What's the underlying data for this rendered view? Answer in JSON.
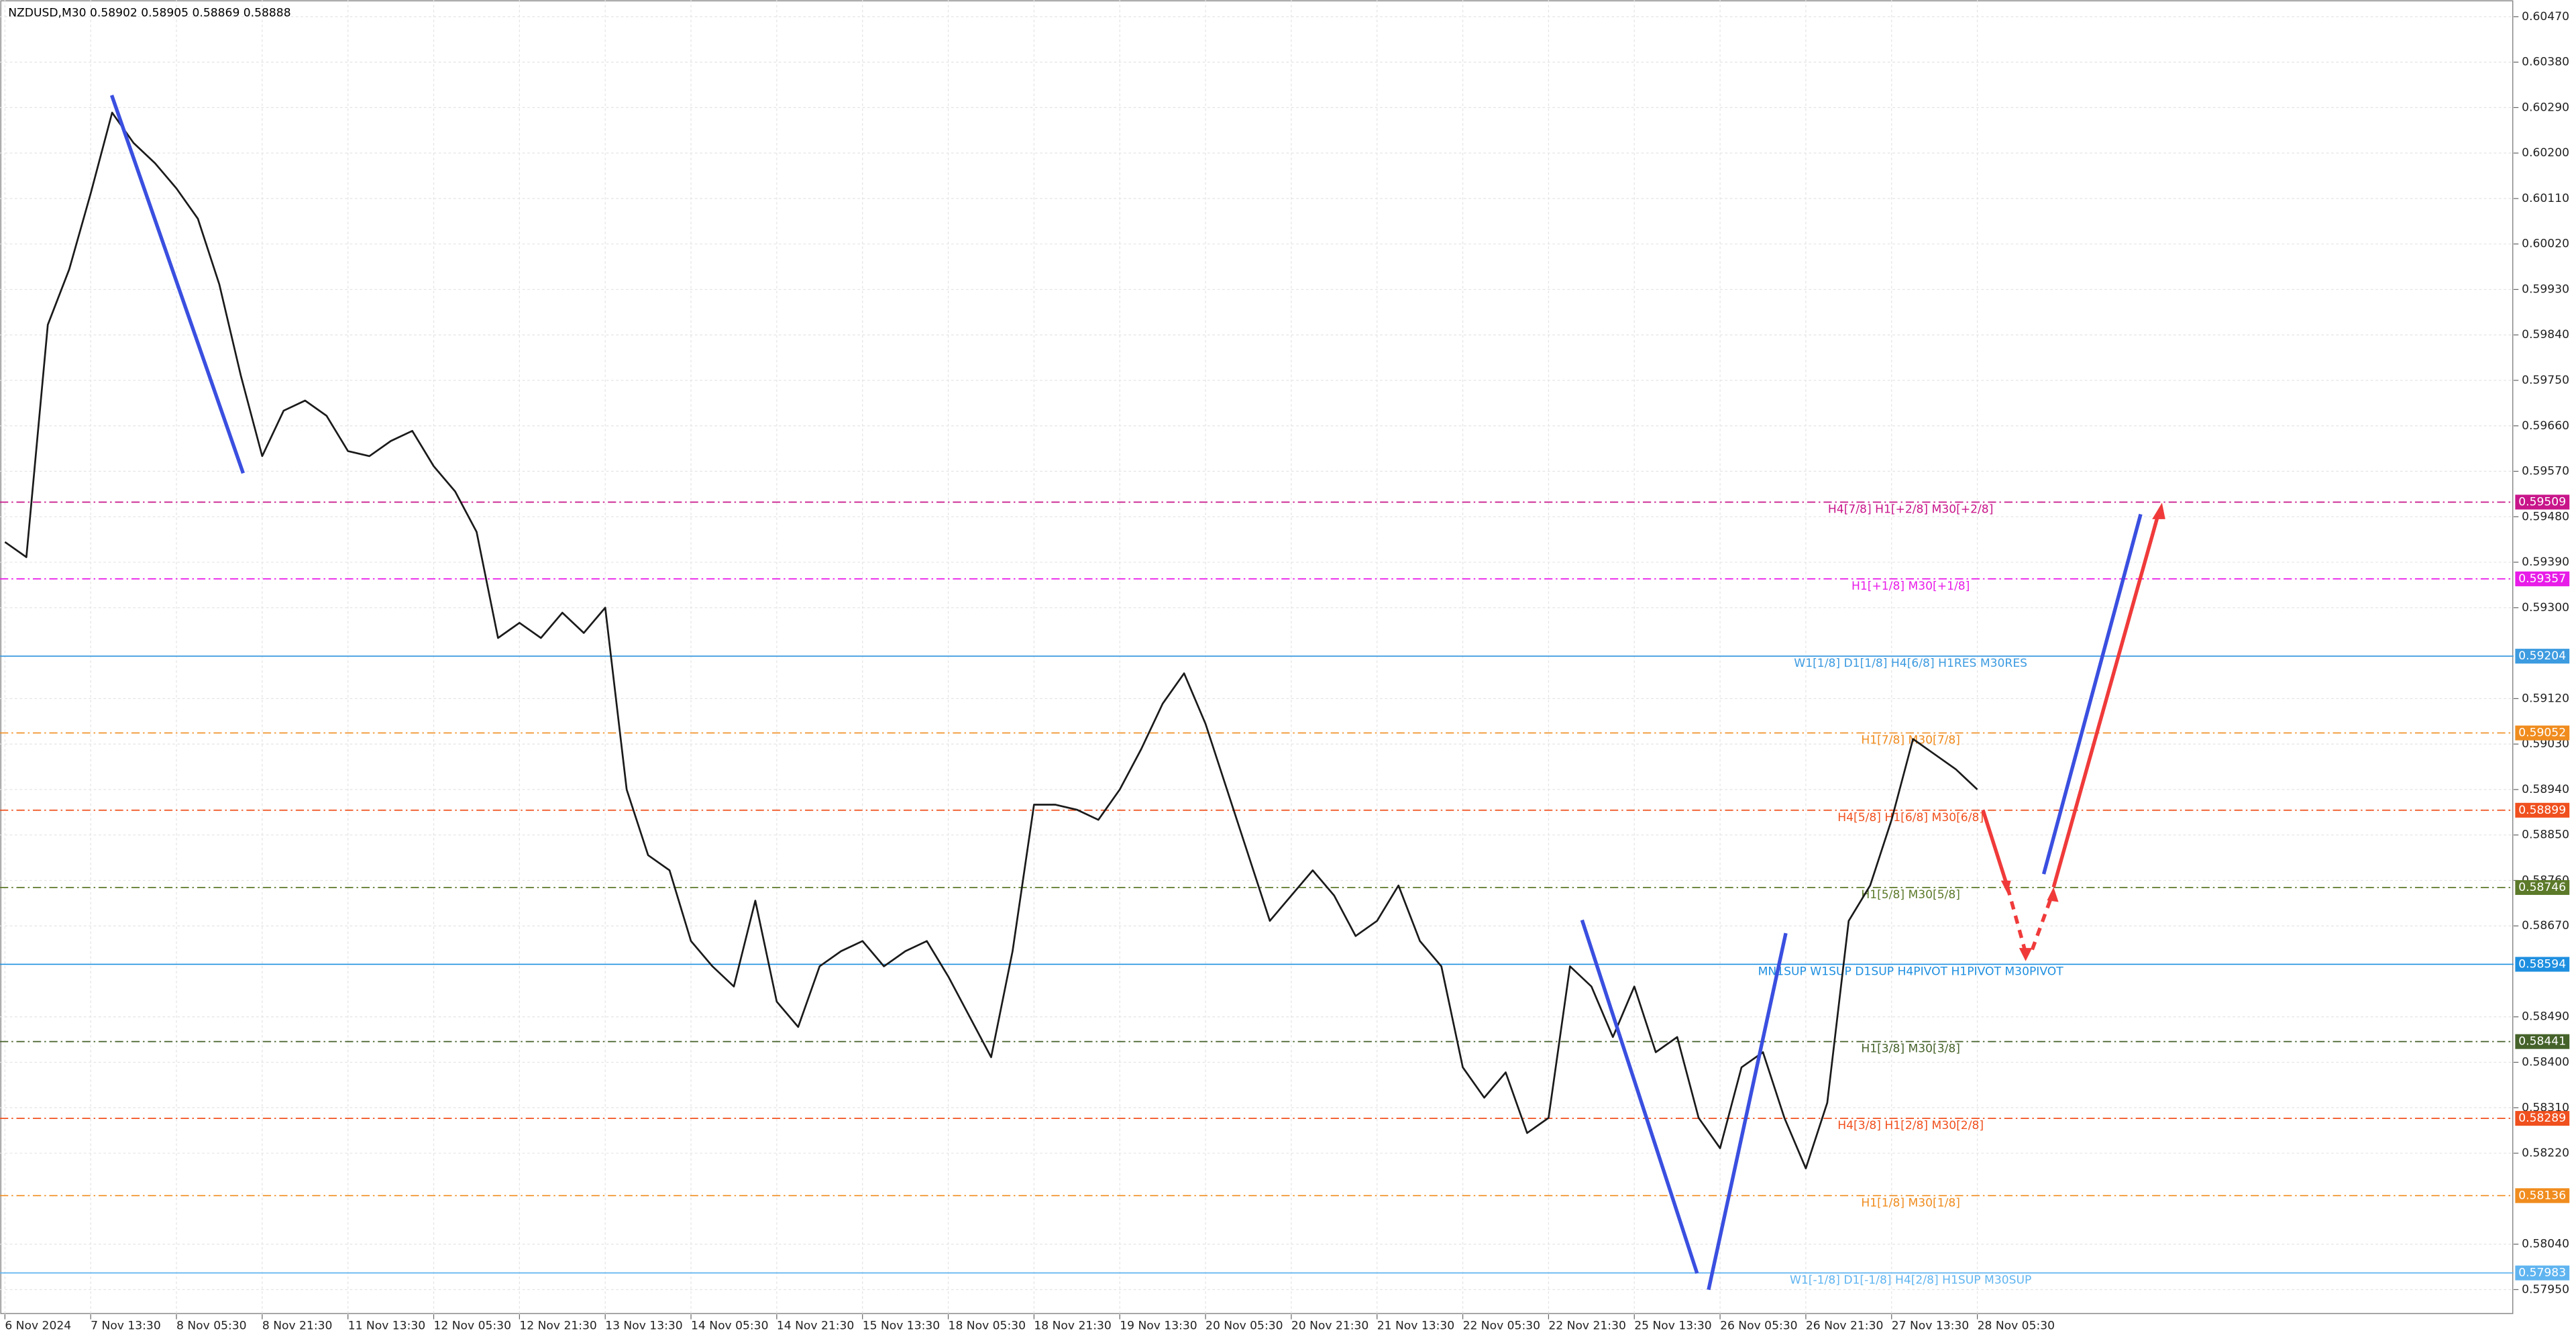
{
  "chart_data": {
    "type": "line",
    "title": "NZDUSD,M30  0.58902 0.58905 0.58869 0.58888",
    "color": "#1a1a1a",
    "grid": true,
    "categories": [
      "6 Nov 2024",
      null,
      null,
      null,
      "7 Nov 13:30",
      null,
      null,
      null,
      "8 Nov 05:30",
      null,
      null,
      null,
      "8 Nov 21:30",
      null,
      null,
      null,
      "11 Nov 13:30",
      null,
      null,
      null,
      "12 Nov 05:30",
      null,
      null,
      null,
      "12 Nov 21:30",
      null,
      null,
      null,
      "13 Nov 13:30",
      null,
      null,
      null,
      "14 Nov 05:30",
      null,
      null,
      null,
      "14 Nov 21:30",
      null,
      null,
      null,
      "15 Nov 13:30",
      null,
      null,
      null,
      "18 Nov 05:30",
      null,
      null,
      null,
      "18 Nov 21:30",
      null,
      null,
      null,
      "19 Nov 13:30",
      null,
      null,
      null,
      "20 Nov 05:30",
      null,
      null,
      null,
      "20 Nov 21:30",
      null,
      null,
      null,
      "21 Nov 13:30",
      null,
      null,
      null,
      "22 Nov 05:30",
      null,
      null,
      null,
      "22 Nov 21:30",
      null,
      null,
      null,
      "25 Nov 13:30",
      null,
      null,
      null,
      "26 Nov 05:30",
      null,
      null,
      null,
      "26 Nov 21:30",
      null,
      null,
      null,
      "27 Nov 13:30",
      null,
      null,
      null,
      "28 Nov 05:30"
    ],
    "values": [
      0.5943,
      0.594,
      0.5986,
      0.5997,
      0.6012,
      0.6028,
      0.6022,
      0.6018,
      0.6013,
      0.6007,
      0.5994,
      0.5976,
      0.596,
      0.5969,
      0.5971,
      0.5968,
      0.5961,
      0.596,
      0.5963,
      0.5965,
      0.5958,
      0.5953,
      0.5945,
      0.5924,
      0.5927,
      0.5924,
      0.5929,
      0.5925,
      0.593,
      0.5894,
      0.5881,
      0.5878,
      0.5864,
      0.5859,
      0.5855,
      0.5872,
      0.5852,
      0.5847,
      0.5859,
      0.5862,
      0.5864,
      0.5859,
      0.5862,
      0.5864,
      0.5857,
      0.5849,
      0.5841,
      0.5862,
      0.5891,
      0.5891,
      0.589,
      0.5888,
      0.5894,
      0.5902,
      0.5911,
      0.5917,
      0.5907,
      0.5894,
      0.5881,
      0.5868,
      0.5873,
      0.5878,
      0.5873,
      0.5865,
      0.5868,
      0.5875,
      0.5864,
      0.5859,
      0.5839,
      0.5833,
      0.5838,
      0.5826,
      0.5829,
      0.5859,
      0.5855,
      0.5845,
      0.5855,
      0.5842,
      0.5845,
      0.5829,
      0.5823,
      0.5839,
      0.5842,
      0.5829,
      0.5819,
      0.5832,
      0.5868,
      0.5875,
      0.5888,
      0.5904,
      0.5901,
      0.5898,
      0.5894
    ],
    "ylim": [
      0.57901,
      0.60503
    ],
    "yticks": [
      {
        "value": 0.6047,
        "label": "0.60470"
      },
      {
        "value": 0.6038,
        "label": "0.60380"
      },
      {
        "value": 0.6029,
        "label": "0.60290"
      },
      {
        "value": 0.602,
        "label": "0.60200"
      },
      {
        "value": 0.6011,
        "label": "0.60110"
      },
      {
        "value": 0.6002,
        "label": "0.60020"
      },
      {
        "value": 0.5993,
        "label": "0.59930"
      },
      {
        "value": 0.5984,
        "label": "0.59840"
      },
      {
        "value": 0.5975,
        "label": "0.59750"
      },
      {
        "value": 0.5966,
        "label": "0.59660"
      },
      {
        "value": 0.5957,
        "label": "0.59570"
      },
      {
        "value": 0.5948,
        "label": "0.59480"
      },
      {
        "value": 0.5939,
        "label": "0.59390"
      },
      {
        "value": 0.593,
        "label": "0.59300"
      },
      {
        "value": 0.5912,
        "label": "0.59120"
      },
      {
        "value": 0.5903,
        "label": "0.59030"
      },
      {
        "value": 0.5894,
        "label": "0.58940"
      },
      {
        "value": 0.5885,
        "label": "0.58850"
      },
      {
        "value": 0.5876,
        "label": "0.58760"
      },
      {
        "value": 0.5867,
        "label": "0.58670"
      },
      {
        "value": 0.5849,
        "label": "0.58490"
      },
      {
        "value": 0.584,
        "label": "0.58400"
      },
      {
        "value": 0.5831,
        "label": "0.58310"
      },
      {
        "value": 0.5822,
        "label": "0.58220"
      },
      {
        "value": 0.5804,
        "label": "0.58040"
      },
      {
        "value": 0.5795,
        "label": "0.57950"
      }
    ],
    "levels": [
      {
        "value": 0.59509,
        "text": "H4[7/8] H1[+2/8] M30[+2/8]",
        "color": "#c8158a",
        "dash": true
      },
      {
        "value": 0.59357,
        "text": "H1[+1/8] M30[+1/8]",
        "color": "#e81ce8",
        "dash": true
      },
      {
        "value": 0.59204,
        "text": "W1[1/8] D1[1/8] H4[6/8] H1RES M30RES",
        "color": "#3d9be0",
        "dash": false
      },
      {
        "value": 0.59052,
        "text": "H1[7/8] M30[7/8]",
        "color": "#f08c1e",
        "dash": true
      },
      {
        "value": 0.58899,
        "text": "H4[5/8] H1[6/8] M30[6/8]",
        "color": "#f0501e",
        "dash": true
      },
      {
        "value": 0.58746,
        "text": "H1[5/8] M30[5/8]",
        "color": "#5c7a2a",
        "dash": true
      },
      {
        "value": 0.58594,
        "text": "MN1SUP W1SUP D1SUP H4PIVOT H1PIVOT M30PIVOT",
        "color": "#1e8fe0",
        "dash": false
      },
      {
        "value": 0.58441,
        "text": "H1[3/8] M30[3/8]",
        "color": "#45622a",
        "dash": true
      },
      {
        "value": 0.58289,
        "text": "H4[3/8] H1[2/8] M30[2/8]",
        "color": "#f0501e",
        "dash": true
      },
      {
        "value": 0.58136,
        "text": "H1[1/8] M30[1/8]",
        "color": "#f08c1e",
        "dash": true
      },
      {
        "value": 0.57983,
        "text": "W1[-1/8] D1[-1/8] H4[2/8] H1SUP M30SUP",
        "color": "#5fb4f0",
        "dash": false
      }
    ]
  }
}
